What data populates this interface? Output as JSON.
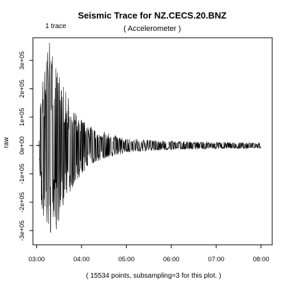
{
  "chart_data": {
    "type": "line",
    "title": "Seismic Trace for  NZ.CECS.20.BNZ",
    "subtitle": "( Accelerometer )",
    "corner_label": "1 trace",
    "ylabel": "raw",
    "footer": "( 15534 points, subsampling=3 for this plot. )",
    "xlim": [
      "02:55",
      "08:15"
    ],
    "ylim": [
      -350000,
      380000
    ],
    "x_ticks": [
      "03:00",
      "04:00",
      "05:00",
      "06:00",
      "07:00",
      "08:00"
    ],
    "y_ticks": [
      {
        "value": -300000,
        "label": "-3e+05"
      },
      {
        "value": -200000,
        "label": "-2e+05"
      },
      {
        "value": -100000,
        "label": "-1e+05"
      },
      {
        "value": 0,
        "label": "0e+00"
      },
      {
        "value": 100000,
        "label": "1e+05"
      },
      {
        "value": 200000,
        "label": "2e+05"
      },
      {
        "value": 300000,
        "label": "3e+05"
      }
    ],
    "grid": false,
    "line_color": "#000000",
    "series": [
      {
        "envelope": [
          {
            "t": "02:59",
            "max": 3000,
            "min": -3000
          },
          {
            "t": "03:03",
            "max": 8000,
            "min": -8000
          },
          {
            "t": "03:05",
            "max": 160000,
            "min": -170000
          },
          {
            "t": "03:08",
            "max": 250000,
            "min": -250000
          },
          {
            "t": "03:12",
            "max": 290000,
            "min": -280000
          },
          {
            "t": "03:16",
            "max": 370000,
            "min": -320000
          },
          {
            "t": "03:21",
            "max": 340000,
            "min": -340000
          },
          {
            "t": "03:26",
            "max": 290000,
            "min": -300000
          },
          {
            "t": "03:33",
            "max": 230000,
            "min": -240000
          },
          {
            "t": "03:42",
            "max": 170000,
            "min": -180000
          },
          {
            "t": "03:52",
            "max": 120000,
            "min": -130000
          },
          {
            "t": "04:05",
            "max": 80000,
            "min": -90000
          },
          {
            "t": "04:20",
            "max": 55000,
            "min": -60000
          },
          {
            "t": "04:40",
            "max": 40000,
            "min": -40000
          },
          {
            "t": "05:00",
            "max": 25000,
            "min": -25000
          },
          {
            "t": "05:30",
            "max": 20000,
            "min": -20000
          },
          {
            "t": "06:00",
            "max": 16000,
            "min": -16000
          },
          {
            "t": "06:30",
            "max": 14000,
            "min": -14000
          },
          {
            "t": "07:00",
            "max": 13000,
            "min": -12000
          },
          {
            "t": "07:30",
            "max": 11000,
            "min": -11000
          },
          {
            "t": "08:00",
            "max": 10000,
            "min": -10000
          }
        ]
      }
    ]
  }
}
